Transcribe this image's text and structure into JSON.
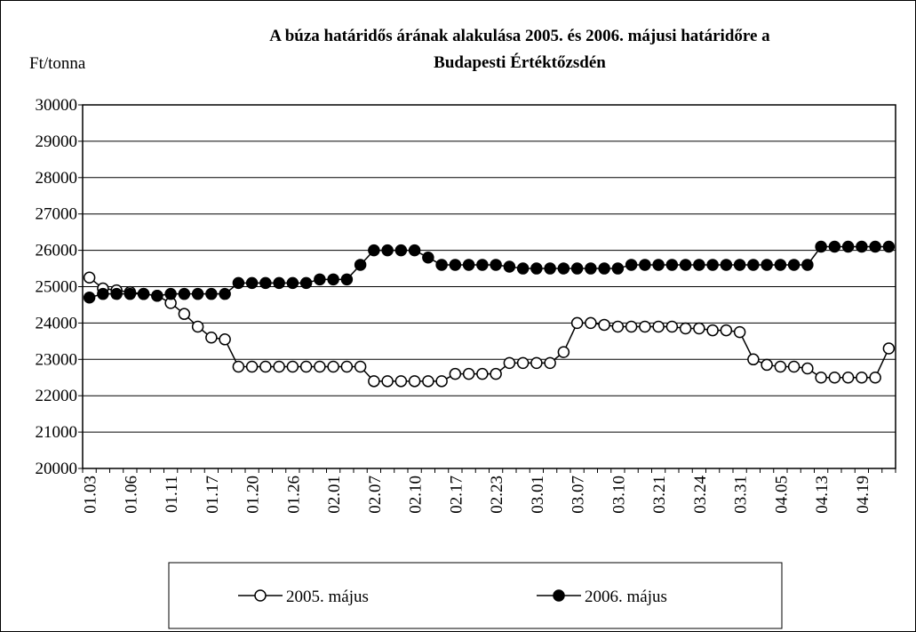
{
  "chart_data": {
    "type": "line",
    "title": [
      "A búza határidős árának alakulása 2005. és 2006. májusi határidőre a",
      "Budapesti Értéktőzsdén"
    ],
    "y_label": "Ft/tonna",
    "categories": [
      "01.03",
      null,
      null,
      "01.06",
      null,
      null,
      "01.11",
      null,
      null,
      "01.17",
      null,
      null,
      "01.20",
      null,
      null,
      "01.26",
      null,
      null,
      "02.01",
      null,
      null,
      "02.07",
      null,
      null,
      "02.10",
      null,
      null,
      "02.17",
      null,
      null,
      "02.23",
      null,
      null,
      "03.01",
      null,
      null,
      "03.07",
      null,
      null,
      "03.10",
      null,
      null,
      "03.21",
      null,
      null,
      "03.24",
      null,
      null,
      "03.31",
      null,
      null,
      "04.05",
      null,
      null,
      "04.13",
      null,
      null,
      "04.19",
      null,
      null
    ],
    "series": [
      {
        "name": "2005. május",
        "color": "#000000",
        "marker_fill": "#ffffff",
        "values": [
          25250,
          24950,
          24900,
          24850,
          24800,
          24750,
          24550,
          24250,
          23900,
          23600,
          23550,
          22800,
          22800,
          22800,
          22800,
          22800,
          22800,
          22800,
          22800,
          22800,
          22800,
          22400,
          22400,
          22400,
          22400,
          22400,
          22400,
          22600,
          22600,
          22600,
          22600,
          22900,
          22900,
          22900,
          22900,
          23200,
          24000,
          24000,
          23950,
          23900,
          23900,
          23900,
          23900,
          23900,
          23850,
          23850,
          23800,
          23800,
          23750,
          23000,
          22850,
          22800,
          22800,
          22750,
          22500,
          22500,
          22500,
          22500,
          22500,
          23300
        ]
      },
      {
        "name": "2006. május",
        "color": "#000000",
        "marker_fill": "#000000",
        "values": [
          24700,
          24800,
          24800,
          24800,
          24800,
          24750,
          24800,
          24800,
          24800,
          24800,
          24800,
          25100,
          25100,
          25100,
          25100,
          25100,
          25100,
          25200,
          25200,
          25200,
          25600,
          26000,
          26000,
          26000,
          26000,
          25800,
          25600,
          25600,
          25600,
          25600,
          25600,
          25550,
          25500,
          25500,
          25500,
          25500,
          25500,
          25500,
          25500,
          25500,
          25600,
          25600,
          25600,
          25600,
          25600,
          25600,
          25600,
          25600,
          25600,
          25600,
          25600,
          25600,
          25600,
          25600,
          26100,
          26100,
          26100,
          26100,
          26100,
          26100
        ]
      }
    ],
    "ylim": [
      20000,
      30000
    ],
    "yticks": [
      20000,
      21000,
      22000,
      23000,
      24000,
      25000,
      26000,
      27000,
      28000,
      29000,
      30000
    ],
    "grid": true,
    "legend": "bottom"
  }
}
